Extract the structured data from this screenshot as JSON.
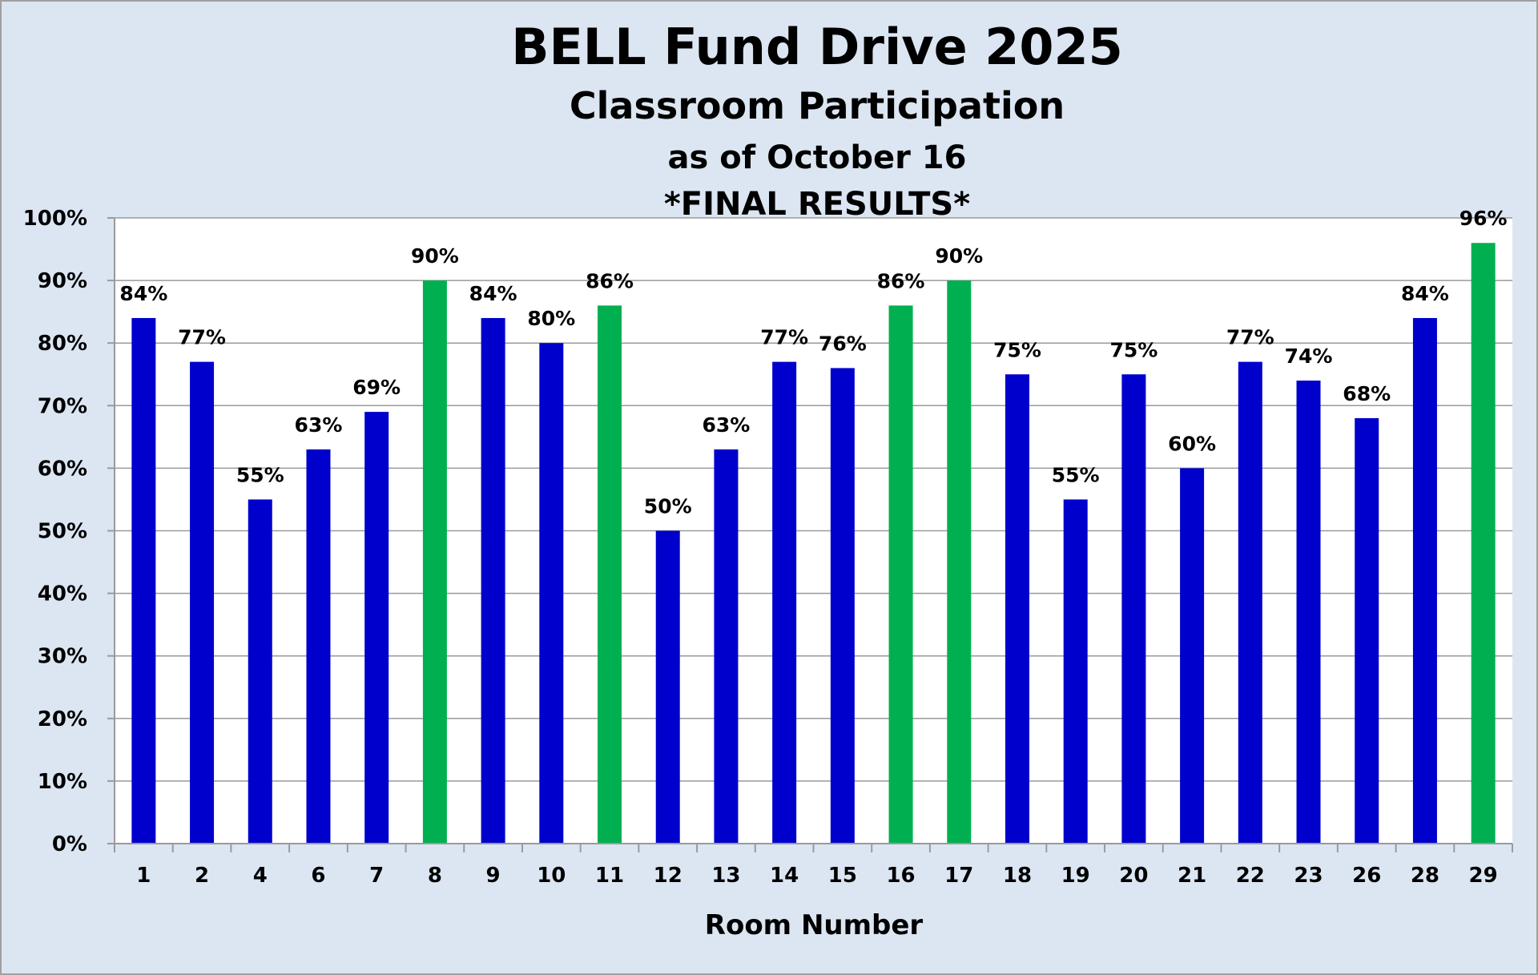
{
  "chart_data": {
    "type": "bar",
    "title": "BELL Fund Drive 2025",
    "subtitle": [
      "Classroom Participation",
      "as of October 16",
      "*FINAL RESULTS*"
    ],
    "xlabel": "Room Number",
    "ylabel": "",
    "ylim": [
      0,
      100
    ],
    "ytick_step": 10,
    "y_unit": "%",
    "grid": true,
    "legend": "none",
    "categories": [
      "1",
      "2",
      "4",
      "6",
      "7",
      "8",
      "9",
      "10",
      "11",
      "12",
      "13",
      "14",
      "15",
      "16",
      "17",
      "18",
      "19",
      "20",
      "21",
      "22",
      "23",
      "26",
      "28",
      "29"
    ],
    "values": [
      84,
      77,
      55,
      63,
      69,
      90,
      84,
      80,
      86,
      50,
      63,
      77,
      76,
      86,
      90,
      75,
      55,
      75,
      60,
      77,
      74,
      68,
      84,
      96
    ],
    "highlight": [
      false,
      false,
      false,
      false,
      false,
      true,
      false,
      false,
      true,
      false,
      false,
      false,
      false,
      true,
      true,
      false,
      false,
      false,
      false,
      false,
      false,
      false,
      false,
      true
    ],
    "colors": {
      "bar": "#0000cc",
      "highlight": "#00b050",
      "background": "#dce6f2",
      "plot": "#ffffff",
      "grid": "#9a9a9a"
    }
  }
}
